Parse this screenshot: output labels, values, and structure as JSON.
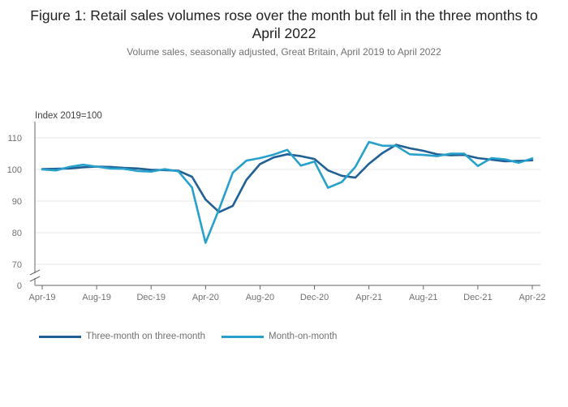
{
  "title": "Figure 1: Retail sales volumes rose over the month but fell in the three months to April 2022",
  "subtitle": "Volume sales, seasonally adjusted, Great Britain, April 2019 to April 2022",
  "colors": {
    "three_month": "#206095",
    "month_on_month": "#27a0cc",
    "grid": "#e6e6e6",
    "axis": "#666666"
  },
  "chart_data": {
    "type": "line",
    "ylabel": "Index 2019=100",
    "yaxis_break": true,
    "yticks": [
      0,
      70,
      80,
      90,
      100,
      110
    ],
    "ylim": [
      68,
      115
    ],
    "xtick_labels": [
      "Apr-19",
      "Aug-19",
      "Dec-19",
      "Apr-20",
      "Aug-20",
      "Dec-20",
      "Apr-21",
      "Aug-21",
      "Dec-21",
      "Apr-22"
    ],
    "x": [
      "Apr-19",
      "May-19",
      "Jun-19",
      "Jul-19",
      "Aug-19",
      "Sep-19",
      "Oct-19",
      "Nov-19",
      "Dec-19",
      "Jan-20",
      "Feb-20",
      "Mar-20",
      "Apr-20",
      "May-20",
      "Jun-20",
      "Jul-20",
      "Aug-20",
      "Sep-20",
      "Oct-20",
      "Nov-20",
      "Dec-20",
      "Jan-21",
      "Feb-21",
      "Mar-21",
      "Apr-21",
      "May-21",
      "Jun-21",
      "Jul-21",
      "Aug-21",
      "Sep-21",
      "Oct-21",
      "Nov-21",
      "Dec-21",
      "Jan-22",
      "Feb-22",
      "Mar-22",
      "Apr-22"
    ],
    "grid": true,
    "legend_position": "bottom-left",
    "series": [
      {
        "name": "Three-month on three-month",
        "color": "#206095",
        "values": [
          100.1,
          100.2,
          100.3,
          100.7,
          100.9,
          100.8,
          100.5,
          100.3,
          99.9,
          99.8,
          99.6,
          97.7,
          90.5,
          86.5,
          88.5,
          96.7,
          101.7,
          103.8,
          104.8,
          104.2,
          103.3,
          99.7,
          98.0,
          97.4,
          101.8,
          105.2,
          107.8,
          106.7,
          105.9,
          104.8,
          104.5,
          104.6,
          103.6,
          103.1,
          102.6,
          102.7,
          102.9
        ]
      },
      {
        "name": "Month-on-month",
        "color": "#27a0cc",
        "values": [
          100.0,
          99.7,
          100.8,
          101.5,
          100.9,
          100.3,
          100.2,
          99.5,
          99.3,
          100.1,
          99.4,
          94.3,
          76.8,
          87.5,
          99.0,
          102.8,
          103.6,
          104.7,
          106.2,
          101.2,
          102.5,
          94.2,
          96.0,
          100.8,
          108.7,
          107.5,
          107.5,
          104.8,
          104.6,
          104.2,
          105.0,
          105.0,
          101.1,
          103.6,
          103.2,
          102.1,
          103.5
        ]
      }
    ]
  }
}
